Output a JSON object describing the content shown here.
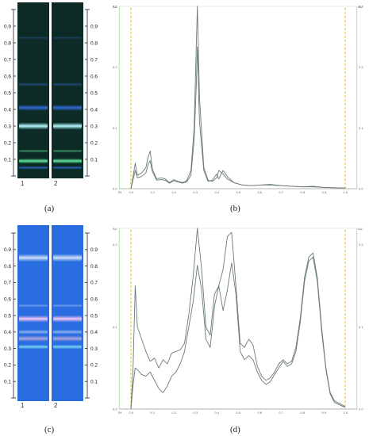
{
  "panels": [
    {
      "id": "a",
      "label": "(a)",
      "lanes": [
        "1",
        "2"
      ]
    },
    {
      "id": "b",
      "label": "(b)"
    },
    {
      "id": "c",
      "label": "(c)",
      "lanes": [
        "1",
        "2"
      ]
    },
    {
      "id": "d",
      "label": "(d)"
    }
  ],
  "rf_scale": {
    "ticks": [
      "0.1",
      "0.2",
      "0.3",
      "0.4",
      "0.5",
      "0.6",
      "0.7",
      "0.8",
      "0.9"
    ]
  },
  "densitogram_axis": {
    "x_start_label": "Rf",
    "y_unit_label": "AU",
    "x_ticks": [
      "0.0",
      "0.1",
      "0.2",
      "0.3",
      "0.4",
      "0.5",
      "0.6",
      "0.7",
      "0.8",
      "0.9",
      "1.0"
    ]
  },
  "colors": {
    "plate_a_background": "#0d2b26",
    "plate_c_background": "#2a6de0",
    "trace": "#6b7b74",
    "marker_line": "#e5c52b"
  },
  "chart_data": [
    {
      "panel": "b",
      "type": "line",
      "xlim": [
        0,
        1
      ],
      "ylim": [
        0,
        0.3
      ],
      "y_ticks_left": [
        "0.0",
        "0.1",
        "0.2",
        "0.3"
      ],
      "y_ticks_right": [
        "0.0",
        "0.1",
        "0.2",
        "0.3"
      ],
      "markers_x": [
        0.0,
        1.0
      ],
      "series": [
        {
          "x": [
            0.0,
            0.01,
            0.02,
            0.03,
            0.05,
            0.07,
            0.08,
            0.09,
            0.1,
            0.12,
            0.14,
            0.16,
            0.18,
            0.2,
            0.22,
            0.24,
            0.26,
            0.28,
            0.295,
            0.305,
            0.31,
            0.32,
            0.34,
            0.36,
            0.38,
            0.4,
            0.41,
            0.43,
            0.45,
            0.48,
            0.52,
            0.56,
            0.6,
            0.65,
            0.7,
            0.75,
            0.8,
            0.85,
            0.9,
            1.0
          ],
          "y": [
            0.0,
            0.02,
            0.042,
            0.022,
            0.026,
            0.035,
            0.052,
            0.062,
            0.032,
            0.016,
            0.018,
            0.016,
            0.01,
            0.015,
            0.012,
            0.01,
            0.013,
            0.03,
            0.1,
            0.235,
            0.3,
            0.15,
            0.035,
            0.014,
            0.012,
            0.018,
            0.03,
            0.024,
            0.016,
            0.01,
            0.006,
            0.005,
            0.006,
            0.007,
            0.005,
            0.004,
            0.003,
            0.004,
            0.002,
            0.001
          ]
        },
        {
          "x": [
            0.0,
            0.01,
            0.02,
            0.03,
            0.05,
            0.07,
            0.08,
            0.09,
            0.1,
            0.12,
            0.14,
            0.16,
            0.18,
            0.2,
            0.22,
            0.24,
            0.26,
            0.28,
            0.295,
            0.305,
            0.31,
            0.32,
            0.34,
            0.36,
            0.38,
            0.4,
            0.41,
            0.43,
            0.45,
            0.48,
            0.52,
            0.56,
            0.6,
            0.65,
            0.7,
            0.75,
            0.8,
            0.85,
            0.9,
            1.0
          ],
          "y": [
            0.0,
            0.015,
            0.03,
            0.018,
            0.02,
            0.026,
            0.04,
            0.046,
            0.028,
            0.014,
            0.015,
            0.014,
            0.009,
            0.013,
            0.011,
            0.009,
            0.011,
            0.022,
            0.08,
            0.17,
            0.233,
            0.11,
            0.03,
            0.012,
            0.014,
            0.024,
            0.016,
            0.03,
            0.02,
            0.01,
            0.006,
            0.005,
            0.006,
            0.006,
            0.005,
            0.004,
            0.003,
            0.003,
            0.002,
            0.001
          ]
        }
      ]
    },
    {
      "panel": "d",
      "type": "line",
      "xlim": [
        0,
        1
      ],
      "ylim": [
        0,
        0.22
      ],
      "y_ticks_left": [
        "0.0",
        "0.1",
        "0.2"
      ],
      "y_ticks_right": [
        "0.0",
        "0.1",
        "0.2"
      ],
      "markers_x": [
        0.0,
        1.0
      ],
      "series": [
        {
          "x": [
            0.0,
            0.01,
            0.02,
            0.03,
            0.05,
            0.07,
            0.09,
            0.11,
            0.13,
            0.15,
            0.17,
            0.19,
            0.21,
            0.23,
            0.25,
            0.27,
            0.29,
            0.31,
            0.33,
            0.35,
            0.37,
            0.39,
            0.41,
            0.43,
            0.45,
            0.47,
            0.49,
            0.51,
            0.53,
            0.55,
            0.57,
            0.59,
            0.61,
            0.63,
            0.65,
            0.67,
            0.69,
            0.71,
            0.73,
            0.75,
            0.77,
            0.79,
            0.81,
            0.83,
            0.85,
            0.87,
            0.89,
            0.91,
            0.93,
            0.95,
            1.0
          ],
          "y": [
            0.0,
            0.05,
            0.15,
            0.1,
            0.085,
            0.07,
            0.058,
            0.062,
            0.05,
            0.06,
            0.055,
            0.068,
            0.07,
            0.072,
            0.08,
            0.115,
            0.16,
            0.22,
            0.17,
            0.1,
            0.09,
            0.14,
            0.15,
            0.17,
            0.21,
            0.215,
            0.15,
            0.08,
            0.075,
            0.085,
            0.078,
            0.052,
            0.04,
            0.035,
            0.038,
            0.045,
            0.055,
            0.06,
            0.055,
            0.058,
            0.075,
            0.11,
            0.16,
            0.185,
            0.19,
            0.16,
            0.1,
            0.05,
            0.02,
            0.01,
            0.003
          ]
        },
        {
          "x": [
            0.0,
            0.01,
            0.02,
            0.03,
            0.05,
            0.07,
            0.09,
            0.11,
            0.13,
            0.15,
            0.17,
            0.19,
            0.21,
            0.23,
            0.25,
            0.27,
            0.29,
            0.31,
            0.33,
            0.35,
            0.37,
            0.39,
            0.41,
            0.43,
            0.45,
            0.47,
            0.49,
            0.51,
            0.53,
            0.55,
            0.57,
            0.59,
            0.61,
            0.63,
            0.65,
            0.67,
            0.69,
            0.71,
            0.73,
            0.75,
            0.77,
            0.79,
            0.81,
            0.83,
            0.85,
            0.87,
            0.89,
            0.91,
            0.93,
            0.95,
            1.0
          ],
          "y": [
            0.0,
            0.03,
            0.05,
            0.048,
            0.042,
            0.04,
            0.045,
            0.035,
            0.025,
            0.02,
            0.028,
            0.04,
            0.045,
            0.055,
            0.07,
            0.1,
            0.13,
            0.175,
            0.145,
            0.085,
            0.075,
            0.125,
            0.15,
            0.12,
            0.145,
            0.178,
            0.14,
            0.07,
            0.06,
            0.065,
            0.06,
            0.045,
            0.035,
            0.03,
            0.033,
            0.042,
            0.05,
            0.058,
            0.052,
            0.055,
            0.07,
            0.105,
            0.155,
            0.18,
            0.185,
            0.155,
            0.095,
            0.048,
            0.018,
            0.008,
            0.002
          ]
        }
      ]
    }
  ]
}
